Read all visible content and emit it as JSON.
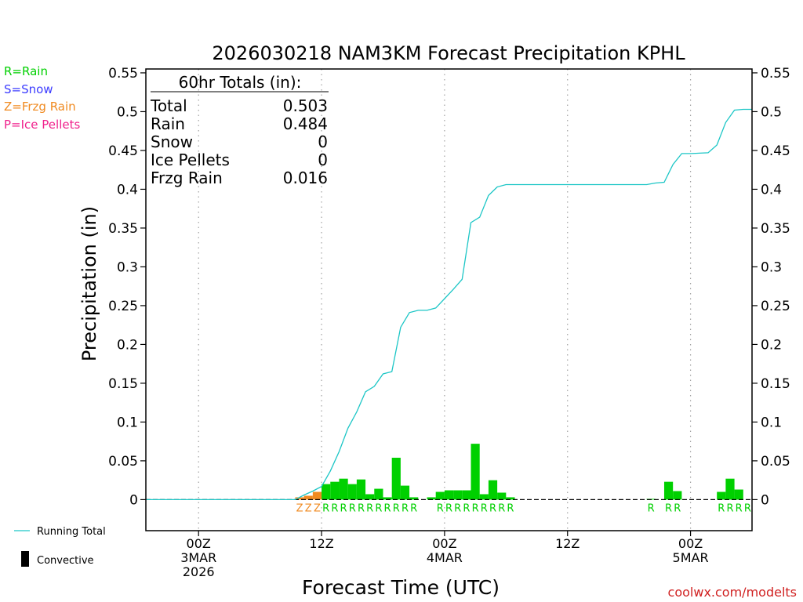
{
  "chart_data": {
    "type": "bar",
    "title": "2026030218 NAM3KM Forecast Precipitation KPHL",
    "xlabel": "Forecast Time (UTC)",
    "ylabel": "Precipitation (in)",
    "ylim": [
      -0.04,
      0.555
    ],
    "xlim_hours": [
      -6,
      63
    ],
    "yticks": [
      "0.55",
      "0.5",
      "0.45",
      "0.4",
      "0.35",
      "0.3",
      "0.25",
      "0.2",
      "0.15",
      "0.1",
      "0.05",
      "0"
    ],
    "ytick_values": [
      0.55,
      0.5,
      0.45,
      0.4,
      0.35,
      0.3,
      0.25,
      0.2,
      0.15,
      0.1,
      0.05,
      0
    ],
    "xticks": [
      {
        "hour": 0,
        "lines": [
          "00Z",
          "3MAR",
          "2026"
        ]
      },
      {
        "hour": 14,
        "lines": [
          "12Z"
        ]
      },
      {
        "hour": 28,
        "lines": [
          "00Z",
          "4MAR"
        ]
      },
      {
        "hour": 42,
        "lines": [
          "12Z"
        ]
      },
      {
        "hour": 56,
        "lines": [
          "00Z",
          "5MAR"
        ]
      }
    ],
    "legend": [
      {
        "label": "R=Rain",
        "color": "#00d000"
      },
      {
        "label": "S=Snow",
        "color": "#3c3cff"
      },
      {
        "label": "Z=Frzg Rain",
        "color": "#f08a20"
      },
      {
        "label": "P=Ice Pellets",
        "color": "#f0208c"
      }
    ],
    "series_legend": [
      {
        "label": "Running Total",
        "color": "#1cc6c6"
      },
      {
        "label": "Convective",
        "color": "#000000"
      }
    ],
    "totals": {
      "header": "60hr Totals (in):",
      "rows": [
        {
          "label": "Total",
          "value": "0.503"
        },
        {
          "label": "Rain",
          "value": "0.484"
        },
        {
          "label": "Snow",
          "value": "0"
        },
        {
          "label": "Ice Pellets",
          "value": "0"
        },
        {
          "label": "Frzg Rain",
          "value": "0.016"
        }
      ]
    },
    "bars": [
      {
        "h": 11.5,
        "v": 0.003,
        "type": "Z"
      },
      {
        "h": 12.5,
        "v": 0.005,
        "type": "Z"
      },
      {
        "h": 13.5,
        "v": 0.01,
        "type": "Z"
      },
      {
        "h": 14.5,
        "v": 0.02,
        "type": "R"
      },
      {
        "h": 15.5,
        "v": 0.023,
        "type": "R"
      },
      {
        "h": 16.5,
        "v": 0.027,
        "type": "R"
      },
      {
        "h": 17.5,
        "v": 0.02,
        "type": "R"
      },
      {
        "h": 18.5,
        "v": 0.026,
        "type": "R"
      },
      {
        "h": 19.5,
        "v": 0.007,
        "type": "R"
      },
      {
        "h": 20.5,
        "v": 0.014,
        "type": "R"
      },
      {
        "h": 21.5,
        "v": 0.003,
        "type": "R"
      },
      {
        "h": 22.5,
        "v": 0.054,
        "type": "R"
      },
      {
        "h": 23.5,
        "v": 0.018,
        "type": "R"
      },
      {
        "h": 24.5,
        "v": 0.003,
        "type": "R"
      },
      {
        "h": 26.5,
        "v": 0.003,
        "type": "R"
      },
      {
        "h": 27.5,
        "v": 0.01,
        "type": "R"
      },
      {
        "h": 28.5,
        "v": 0.012,
        "type": "R"
      },
      {
        "h": 29.5,
        "v": 0.012,
        "type": "R"
      },
      {
        "h": 30.5,
        "v": 0.012,
        "type": "R"
      },
      {
        "h": 31.5,
        "v": 0.072,
        "type": "R"
      },
      {
        "h": 32.5,
        "v": 0.007,
        "type": "R"
      },
      {
        "h": 33.5,
        "v": 0.025,
        "type": "R"
      },
      {
        "h": 34.5,
        "v": 0.009,
        "type": "R"
      },
      {
        "h": 35.5,
        "v": 0.003,
        "type": "R"
      },
      {
        "h": 51.5,
        "v": 0.001,
        "type": "R"
      },
      {
        "h": 53.5,
        "v": 0.023,
        "type": "R"
      },
      {
        "h": 54.5,
        "v": 0.011,
        "type": "R"
      },
      {
        "h": 59.5,
        "v": 0.01,
        "type": "R"
      },
      {
        "h": 60.5,
        "v": 0.027,
        "type": "R"
      },
      {
        "h": 61.5,
        "v": 0.013,
        "type": "R"
      }
    ],
    "type_markers": [
      {
        "h": 11.5,
        "label": "Z"
      },
      {
        "h": 12.5,
        "label": "Z"
      },
      {
        "h": 13.5,
        "label": "Z"
      },
      {
        "h": 14.5,
        "label": "R"
      },
      {
        "h": 15.5,
        "label": "R"
      },
      {
        "h": 16.5,
        "label": "R"
      },
      {
        "h": 17.5,
        "label": "R"
      },
      {
        "h": 18.5,
        "label": "R"
      },
      {
        "h": 19.5,
        "label": "R"
      },
      {
        "h": 20.5,
        "label": "R"
      },
      {
        "h": 21.5,
        "label": "R"
      },
      {
        "h": 22.5,
        "label": "R"
      },
      {
        "h": 23.5,
        "label": "R"
      },
      {
        "h": 24.5,
        "label": "R"
      },
      {
        "h": 27.5,
        "label": "R"
      },
      {
        "h": 28.5,
        "label": "R"
      },
      {
        "h": 29.5,
        "label": "R"
      },
      {
        "h": 30.5,
        "label": "R"
      },
      {
        "h": 31.5,
        "label": "R"
      },
      {
        "h": 32.5,
        "label": "R"
      },
      {
        "h": 33.5,
        "label": "R"
      },
      {
        "h": 34.5,
        "label": "R"
      },
      {
        "h": 35.5,
        "label": "R"
      },
      {
        "h": 51.5,
        "label": "R"
      },
      {
        "h": 53.5,
        "label": "R"
      },
      {
        "h": 54.5,
        "label": "R"
      },
      {
        "h": 59.5,
        "label": "R"
      },
      {
        "h": 60.5,
        "label": "R"
      },
      {
        "h": 61.5,
        "label": "R"
      },
      {
        "h": 62.5,
        "label": "R"
      }
    ],
    "running_total": [
      {
        "h": -6,
        "v": 0
      },
      {
        "h": 11,
        "v": 0
      },
      {
        "h": 12,
        "v": 0.006
      },
      {
        "h": 13,
        "v": 0.011
      },
      {
        "h": 14,
        "v": 0.017
      },
      {
        "h": 15,
        "v": 0.037
      },
      {
        "h": 16,
        "v": 0.062
      },
      {
        "h": 17,
        "v": 0.092
      },
      {
        "h": 18,
        "v": 0.113
      },
      {
        "h": 19,
        "v": 0.139
      },
      {
        "h": 20,
        "v": 0.146
      },
      {
        "h": 21,
        "v": 0.162
      },
      {
        "h": 22,
        "v": 0.165
      },
      {
        "h": 23,
        "v": 0.222
      },
      {
        "h": 24,
        "v": 0.241
      },
      {
        "h": 25,
        "v": 0.244
      },
      {
        "h": 26,
        "v": 0.244
      },
      {
        "h": 27,
        "v": 0.247
      },
      {
        "h": 28,
        "v": 0.259
      },
      {
        "h": 29,
        "v": 0.271
      },
      {
        "h": 30,
        "v": 0.284
      },
      {
        "h": 31,
        "v": 0.357
      },
      {
        "h": 32,
        "v": 0.364
      },
      {
        "h": 33,
        "v": 0.392
      },
      {
        "h": 34,
        "v": 0.403
      },
      {
        "h": 35,
        "v": 0.406
      },
      {
        "h": 36,
        "v": 0.406
      },
      {
        "h": 51,
        "v": 0.406
      },
      {
        "h": 52,
        "v": 0.408
      },
      {
        "h": 53,
        "v": 0.409
      },
      {
        "h": 54,
        "v": 0.432
      },
      {
        "h": 55,
        "v": 0.446
      },
      {
        "h": 56,
        "v": 0.446
      },
      {
        "h": 58,
        "v": 0.447
      },
      {
        "h": 59,
        "v": 0.457
      },
      {
        "h": 60,
        "v": 0.486
      },
      {
        "h": 61,
        "v": 0.502
      },
      {
        "h": 62,
        "v": 0.503
      },
      {
        "h": 63,
        "v": 0.503
      }
    ]
  },
  "credit": "coolwx.com/modelts",
  "colors": {
    "rain": "#00d000",
    "frzg": "#f08a20",
    "line": "#1cc6c6",
    "grid": "#a0a0a0"
  }
}
